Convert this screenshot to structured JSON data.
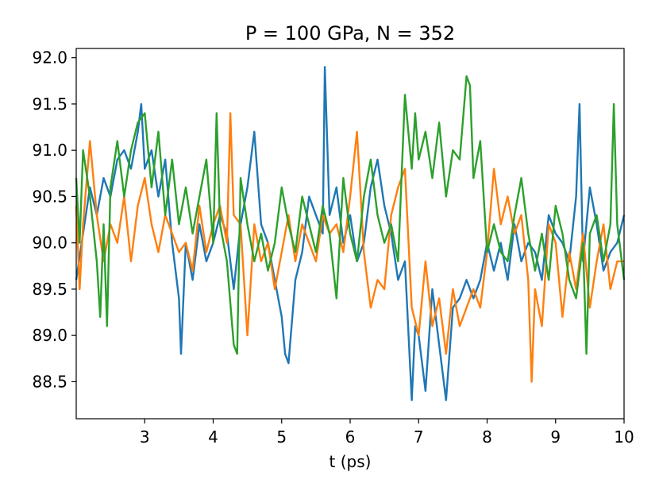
{
  "chart_data": {
    "type": "line",
    "title": "P = 100 GPa, N = 352",
    "xlabel": "t (ps)",
    "ylabel": "",
    "xlim": [
      2.0,
      10.0
    ],
    "ylim": [
      88.1,
      92.1
    ],
    "xticks": [
      3,
      4,
      5,
      6,
      7,
      8,
      9,
      10
    ],
    "xtick_labels": [
      "3",
      "4",
      "5",
      "6",
      "7",
      "8",
      "9",
      "10"
    ],
    "yticks": [
      88.5,
      89.0,
      89.5,
      90.0,
      90.5,
      91.0,
      91.5,
      92.0
    ],
    "ytick_labels": [
      "88.5",
      "89.0",
      "89.5",
      "90.0",
      "90.5",
      "91.0",
      "91.5",
      "92.0"
    ],
    "grid": false,
    "series": [
      {
        "color": "#1f77b4",
        "x": [
          2.0,
          2.1,
          2.2,
          2.3,
          2.4,
          2.5,
          2.6,
          2.7,
          2.8,
          2.9,
          2.95,
          3.0,
          3.1,
          3.2,
          3.3,
          3.4,
          3.5,
          3.53,
          3.6,
          3.7,
          3.8,
          3.9,
          4.0,
          4.1,
          4.2,
          4.3,
          4.4,
          4.5,
          4.6,
          4.7,
          4.8,
          4.9,
          5.0,
          5.05,
          5.1,
          5.2,
          5.3,
          5.4,
          5.5,
          5.6,
          5.63,
          5.7,
          5.8,
          5.9,
          6.0,
          6.1,
          6.2,
          6.3,
          6.4,
          6.5,
          6.6,
          6.7,
          6.8,
          6.9,
          6.95,
          7.0,
          7.1,
          7.2,
          7.3,
          7.4,
          7.5,
          7.6,
          7.7,
          7.8,
          7.9,
          8.0,
          8.1,
          8.2,
          8.3,
          8.4,
          8.5,
          8.6,
          8.7,
          8.8,
          8.9,
          9.0,
          9.1,
          9.2,
          9.3,
          9.35,
          9.4,
          9.5,
          9.6,
          9.7,
          9.8,
          9.9,
          10.0
        ],
        "y": [
          89.6,
          90.1,
          90.6,
          90.3,
          90.7,
          90.5,
          90.9,
          91.0,
          90.8,
          91.2,
          91.5,
          90.8,
          91.0,
          90.5,
          90.9,
          90.0,
          89.4,
          88.8,
          90.0,
          89.6,
          90.2,
          89.8,
          90.0,
          90.3,
          90.1,
          89.5,
          90.2,
          90.6,
          91.2,
          90.2,
          90.0,
          89.6,
          89.2,
          88.8,
          88.7,
          89.6,
          89.9,
          90.5,
          90.3,
          90.1,
          91.9,
          90.3,
          90.6,
          90.0,
          90.3,
          89.8,
          90.0,
          90.6,
          90.9,
          90.4,
          90.1,
          89.6,
          89.8,
          88.3,
          89.1,
          89.0,
          88.4,
          89.5,
          88.9,
          88.3,
          89.3,
          89.4,
          89.6,
          89.4,
          89.6,
          90.0,
          89.7,
          90.0,
          89.6,
          90.2,
          89.8,
          90.0,
          89.9,
          89.6,
          90.3,
          90.1,
          90.0,
          89.8,
          90.5,
          91.5,
          89.8,
          90.6,
          90.2,
          89.7,
          89.9,
          90.0,
          90.3
        ]
      },
      {
        "color": "#ff7f0e",
        "x": [
          2.0,
          2.05,
          2.1,
          2.2,
          2.3,
          2.4,
          2.5,
          2.6,
          2.7,
          2.8,
          2.9,
          3.0,
          3.1,
          3.2,
          3.3,
          3.4,
          3.5,
          3.6,
          3.7,
          3.8,
          3.9,
          4.0,
          4.1,
          4.2,
          4.25,
          4.3,
          4.4,
          4.5,
          4.6,
          4.7,
          4.8,
          4.9,
          5.0,
          5.1,
          5.2,
          5.3,
          5.4,
          5.5,
          5.6,
          5.7,
          5.8,
          5.9,
          6.0,
          6.1,
          6.2,
          6.3,
          6.4,
          6.5,
          6.6,
          6.7,
          6.8,
          6.9,
          7.0,
          7.1,
          7.2,
          7.3,
          7.4,
          7.5,
          7.6,
          7.7,
          7.8,
          7.9,
          8.0,
          8.1,
          8.2,
          8.3,
          8.4,
          8.5,
          8.6,
          8.65,
          8.7,
          8.8,
          8.9,
          9.0,
          9.1,
          9.2,
          9.3,
          9.4,
          9.5,
          9.6,
          9.7,
          9.8,
          9.9,
          10.0
        ],
        "y": [
          90.4,
          89.5,
          90.2,
          91.1,
          90.3,
          89.8,
          90.2,
          90.0,
          90.5,
          89.8,
          90.4,
          90.7,
          90.2,
          89.9,
          90.3,
          90.1,
          89.9,
          90.0,
          89.7,
          90.4,
          89.9,
          90.2,
          90.4,
          90.0,
          91.4,
          90.3,
          90.2,
          89.0,
          90.2,
          89.8,
          90.0,
          89.5,
          89.9,
          90.3,
          89.8,
          90.2,
          90.0,
          89.8,
          90.3,
          90.1,
          90.2,
          89.9,
          90.5,
          91.2,
          89.9,
          89.3,
          89.6,
          89.5,
          90.3,
          90.6,
          90.8,
          89.3,
          89.0,
          89.8,
          89.1,
          89.4,
          88.8,
          89.5,
          89.1,
          89.3,
          89.5,
          89.3,
          89.9,
          90.8,
          90.2,
          90.5,
          90.1,
          90.3,
          89.6,
          88.5,
          89.5,
          89.1,
          90.2,
          90.0,
          89.2,
          89.9,
          89.5,
          90.1,
          89.3,
          89.8,
          90.2,
          89.5,
          89.8,
          89.8
        ]
      },
      {
        "color": "#2ca02c",
        "x": [
          2.0,
          2.05,
          2.1,
          2.2,
          2.3,
          2.35,
          2.4,
          2.45,
          2.5,
          2.6,
          2.7,
          2.8,
          2.9,
          3.0,
          3.1,
          3.2,
          3.3,
          3.4,
          3.5,
          3.6,
          3.7,
          3.8,
          3.9,
          4.0,
          4.05,
          4.1,
          4.2,
          4.3,
          4.35,
          4.4,
          4.5,
          4.6,
          4.7,
          4.8,
          4.9,
          5.0,
          5.1,
          5.2,
          5.3,
          5.4,
          5.5,
          5.6,
          5.7,
          5.8,
          5.9,
          6.0,
          6.1,
          6.2,
          6.3,
          6.4,
          6.5,
          6.6,
          6.7,
          6.8,
          6.9,
          6.95,
          7.0,
          7.1,
          7.2,
          7.3,
          7.4,
          7.5,
          7.6,
          7.7,
          7.75,
          7.8,
          7.9,
          8.0,
          8.1,
          8.2,
          8.3,
          8.4,
          8.5,
          8.6,
          8.7,
          8.8,
          8.9,
          9.0,
          9.1,
          9.2,
          9.3,
          9.4,
          9.45,
          9.5,
          9.6,
          9.7,
          9.8,
          9.85,
          9.9,
          10.0
        ],
        "y": [
          90.7,
          90.0,
          91.0,
          90.5,
          89.8,
          89.2,
          90.2,
          89.1,
          90.6,
          91.1,
          90.5,
          91.0,
          91.3,
          91.4,
          90.6,
          91.2,
          90.3,
          90.9,
          90.2,
          90.6,
          90.1,
          90.5,
          90.9,
          90.0,
          91.4,
          90.2,
          89.8,
          88.9,
          88.8,
          90.7,
          90.2,
          89.8,
          90.1,
          89.7,
          90.0,
          90.6,
          90.2,
          89.9,
          90.5,
          90.2,
          89.9,
          90.4,
          90.1,
          89.4,
          90.7,
          90.1,
          89.8,
          90.5,
          90.9,
          90.3,
          90.0,
          90.2,
          89.8,
          91.6,
          90.8,
          91.4,
          90.9,
          91.2,
          90.7,
          91.3,
          90.5,
          91.0,
          90.9,
          91.8,
          91.7,
          90.7,
          91.1,
          89.9,
          90.2,
          89.9,
          89.8,
          90.3,
          90.7,
          90.1,
          89.7,
          90.1,
          89.6,
          90.4,
          90.1,
          89.6,
          89.4,
          90.0,
          88.8,
          90.1,
          90.3,
          89.8,
          90.2,
          91.5,
          90.2,
          89.6
        ]
      }
    ]
  }
}
